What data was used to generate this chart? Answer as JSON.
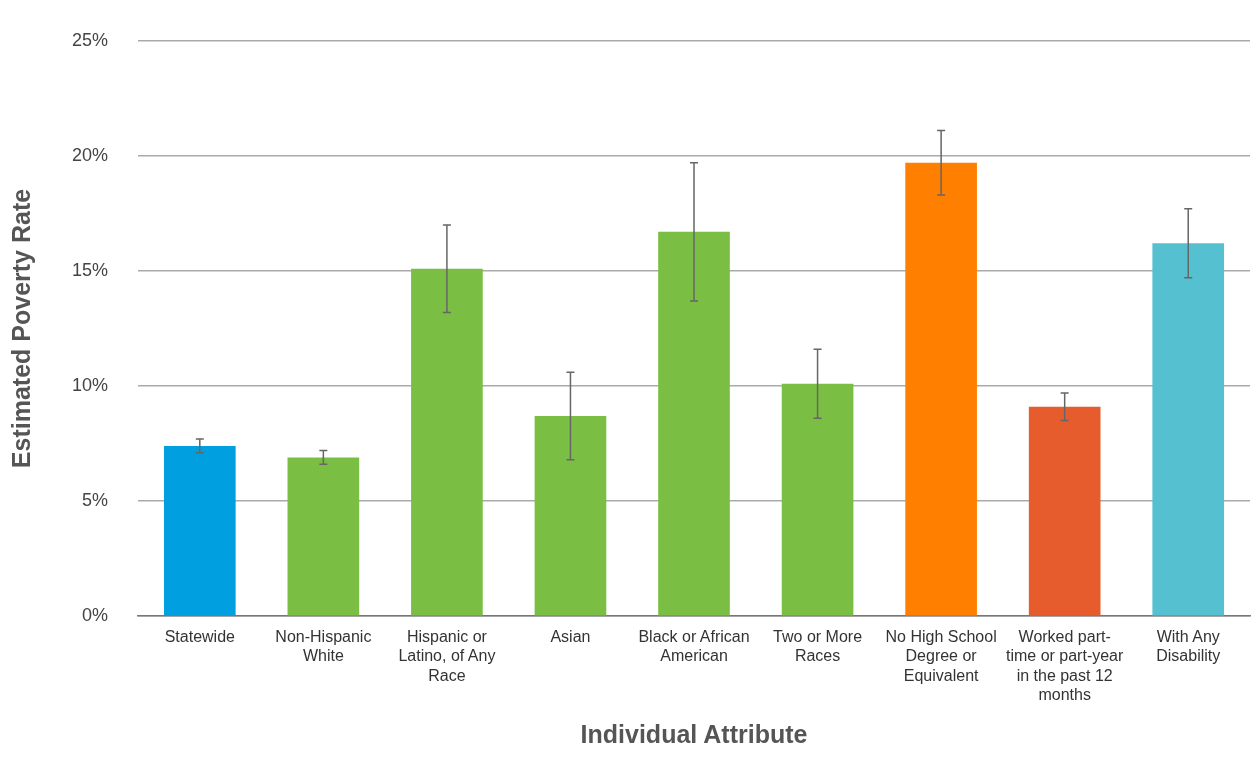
{
  "chart_data": {
    "type": "bar",
    "xlabel": "Individual Attribute",
    "ylabel": "Estimated Poverty Rate",
    "categories": [
      "Statewide",
      "Non-Hispanic White",
      "Hispanic or Latino, of Any Race",
      "Asian",
      "Black or African American",
      "Two or More Races",
      "No High School Degree or Equivalent",
      "Worked part-time or part-year in the past 12 months",
      "With Any Disability"
    ],
    "values": [
      7.4,
      6.9,
      15.1,
      8.7,
      16.7,
      10.1,
      19.7,
      9.1,
      16.2
    ],
    "colors": [
      "#009fdf",
      "#7abf43",
      "#7abf43",
      "#7abf43",
      "#7abf43",
      "#7abf43",
      "#ff8000",
      "#e65c2c",
      "#55c1d0"
    ],
    "errors": [
      0.3,
      0.3,
      1.9,
      1.9,
      3.0,
      1.5,
      1.4,
      0.6,
      1.5
    ],
    "ylim": [
      0,
      25
    ],
    "yticks": [
      {
        "value": 0,
        "label": "0%"
      },
      {
        "value": 5,
        "label": "5%"
      },
      {
        "value": 10,
        "label": "10%"
      },
      {
        "value": 15,
        "label": "15%"
      },
      {
        "value": 20,
        "label": "20%"
      },
      {
        "value": 25,
        "label": "25%"
      }
    ],
    "grid": "y",
    "legend": false
  }
}
